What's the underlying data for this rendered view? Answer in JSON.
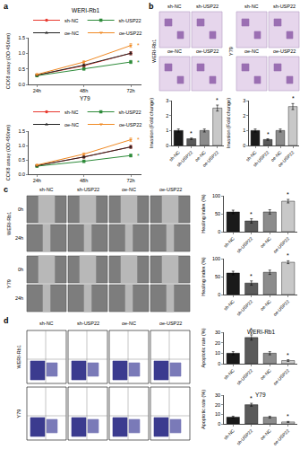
{
  "chart_data": [
    {
      "type": "line",
      "title": "WERI-Rb1",
      "ylabel": "CCK8 assay (OD 450nm)",
      "categories": [
        "24h",
        "48h",
        "72h"
      ],
      "ylim": [
        0,
        1.5
      ],
      "yticks": [
        {
          "value": 0,
          "label": "0.0"
        },
        {
          "value": 0.5,
          "label": "0.5"
        },
        {
          "value": 1,
          "label": "1.0"
        },
        {
          "value": 1.5,
          "label": "1.5"
        }
      ],
      "grid": false,
      "series": [
        {
          "name": "sh-NC",
          "color": "#e8392f",
          "marker": "circle",
          "line_style": "solid",
          "values": [
            0.3,
            0.6,
            1.0
          ],
          "errors": [
            0.03,
            0.04,
            0.05
          ]
        },
        {
          "name": "sh-USP22",
          "color": "#2e8b3a",
          "marker": "square",
          "line_style": "solid",
          "values": [
            0.28,
            0.5,
            0.72
          ],
          "errors": [
            0.03,
            0.04,
            0.05
          ],
          "marks": [
            null,
            null,
            "*"
          ]
        },
        {
          "name": "oe-NC",
          "color": "#222222",
          "marker": "triangle-up",
          "line_style": "solid",
          "values": [
            0.3,
            0.62,
            1.0
          ],
          "errors": [
            0.03,
            0.04,
            0.05
          ]
        },
        {
          "name": "oe-USP22",
          "color": "#f08a24",
          "marker": "triangle-down",
          "line_style": "solid",
          "values": [
            0.32,
            0.72,
            1.25
          ],
          "errors": [
            0.03,
            0.04,
            0.06
          ],
          "marks": [
            null,
            null,
            "*"
          ]
        }
      ]
    },
    {
      "type": "line",
      "title": "Y79",
      "ylabel": "CCK8 assay (OD 450nm)",
      "categories": [
        "24h",
        "48h",
        "72h"
      ],
      "ylim": [
        0,
        1.5
      ],
      "yticks": [
        {
          "value": 0,
          "label": "0.0"
        },
        {
          "value": 0.5,
          "label": "0.5"
        },
        {
          "value": 1,
          "label": "1.0"
        },
        {
          "value": 1.5,
          "label": "1.5"
        }
      ],
      "grid": false,
      "series": [
        {
          "name": "sh-NC",
          "color": "#e8392f",
          "marker": "circle",
          "line_style": "solid",
          "values": [
            0.3,
            0.6,
            0.95
          ],
          "errors": [
            0.03,
            0.04,
            0.05
          ]
        },
        {
          "name": "sh-USP22",
          "color": "#2e8b3a",
          "marker": "square",
          "line_style": "solid",
          "values": [
            0.28,
            0.45,
            0.65
          ],
          "errors": [
            0.03,
            0.04,
            0.05
          ],
          "marks": [
            null,
            null,
            "*"
          ]
        },
        {
          "name": "oe-NC",
          "color": "#222222",
          "marker": "triangle-up",
          "line_style": "solid",
          "values": [
            0.3,
            0.6,
            0.95
          ],
          "errors": [
            0.03,
            0.04,
            0.05
          ]
        },
        {
          "name": "oe-USP22",
          "color": "#f08a24",
          "marker": "triangle-down",
          "line_style": "solid",
          "values": [
            0.32,
            0.7,
            1.2
          ],
          "errors": [
            0.03,
            0.04,
            0.06
          ],
          "marks": [
            null,
            null,
            "*"
          ]
        }
      ]
    },
    {
      "type": "bar",
      "ylabel": "Invasion (Fold change)",
      "categories": [
        "sh-NC",
        "sh-USP22",
        "oe-NC",
        "oe-USP22"
      ],
      "values": [
        1.0,
        0.45,
        1.0,
        2.5
      ],
      "errors": [
        0.1,
        0.05,
        0.1,
        0.2
      ],
      "colors": [
        "#1a1a1a",
        "#5a5a5a",
        "#8c8c8c",
        "#c8c8c8"
      ],
      "marks": [
        null,
        "*",
        null,
        "*"
      ],
      "ylim": [
        0,
        3
      ],
      "yticks": [
        0,
        1,
        2,
        3
      ],
      "grid": false
    },
    {
      "type": "bar",
      "ylabel": "Invasion (Fold change)",
      "categories": [
        "sh-NC",
        "sh-USP22",
        "oe-NC",
        "oe-USP22"
      ],
      "values": [
        1.0,
        0.4,
        1.0,
        2.6
      ],
      "errors": [
        0.1,
        0.05,
        0.1,
        0.2
      ],
      "colors": [
        "#1a1a1a",
        "#5a5a5a",
        "#8c8c8c",
        "#c8c8c8"
      ],
      "marks": [
        null,
        "*",
        null,
        "*"
      ],
      "ylim": [
        0,
        3
      ],
      "yticks": [
        0,
        1,
        2,
        3
      ],
      "grid": false
    },
    {
      "type": "bar",
      "ylabel": "Healing index (%)",
      "categories": [
        "sh-NC",
        "sh-USP22",
        "oe-NC",
        "oe-USP22"
      ],
      "values": [
        55,
        30,
        55,
        85
      ],
      "errors": [
        5,
        6,
        6,
        5
      ],
      "colors": [
        "#1a1a1a",
        "#5a5a5a",
        "#8c8c8c",
        "#c8c8c8"
      ],
      "marks": [
        null,
        "*",
        null,
        "*"
      ],
      "ylim": [
        0,
        100
      ],
      "yticks": [
        0,
        50,
        100
      ],
      "grid": false
    },
    {
      "type": "bar",
      "ylabel": "Healing index (%)",
      "categories": [
        "sh-NC",
        "sh-USP22",
        "oe-NC",
        "oe-USP22"
      ],
      "values": [
        60,
        32,
        62,
        90
      ],
      "errors": [
        5,
        6,
        6,
        4
      ],
      "colors": [
        "#1a1a1a",
        "#5a5a5a",
        "#8c8c8c",
        "#c8c8c8"
      ],
      "marks": [
        null,
        "*",
        null,
        "*"
      ],
      "ylim": [
        0,
        100
      ],
      "yticks": [
        0,
        50,
        100
      ],
      "grid": false
    },
    {
      "type": "bar",
      "title": "WERI-Rb1",
      "ylabel": "Apoptotic rate (%)",
      "categories": [
        "sh-NC",
        "sh-USP22",
        "oe-NC",
        "oe-USP22"
      ],
      "values": [
        10,
        25,
        10,
        3
      ],
      "errors": [
        1.5,
        2.5,
        1.5,
        0.8
      ],
      "colors": [
        "#1a1a1a",
        "#5a5a5a",
        "#8c8c8c",
        "#c8c8c8"
      ],
      "marks": [
        null,
        "*",
        null,
        "*"
      ],
      "ylim": [
        0,
        30
      ],
      "yticks": [
        0,
        10,
        20,
        30
      ],
      "grid": false
    },
    {
      "type": "bar",
      "title": "Y79",
      "ylabel": "Apoptotic rate (%)",
      "categories": [
        "sh-NC",
        "sh-USP22",
        "oe-NC",
        "oe-USP22"
      ],
      "values": [
        7,
        20,
        7,
        2
      ],
      "errors": [
        1,
        1.5,
        1,
        0.5
      ],
      "colors": [
        "#1a1a1a",
        "#5a5a5a",
        "#8c8c8c",
        "#c8c8c8"
      ],
      "marks": [
        null,
        "*",
        null,
        "*"
      ],
      "ylim": [
        0,
        30
      ],
      "yticks": [
        0,
        10,
        20,
        30
      ],
      "grid": false
    }
  ],
  "panels": {
    "labels": [
      "a",
      "b",
      "c",
      "d"
    ],
    "b_images": {
      "groups": [
        "WERI-Rb1",
        "Y79"
      ],
      "rows": [
        [
          "sh-NC",
          "sh-USP22"
        ],
        [
          "oe-NC",
          "oe-USP22"
        ]
      ]
    },
    "c_images": {
      "columns": [
        "sh-NC",
        "sh-USP22",
        "oe-NC",
        "oe-USP22"
      ],
      "groups": [
        "WERI-Rb1",
        "Y79"
      ],
      "times": [
        "0h",
        "24h"
      ]
    },
    "d_images": {
      "columns": [
        "sh-NC",
        "sh-USP22",
        "oe-NC",
        "oe-USP22"
      ],
      "groups": [
        "WERI-Rb1",
        "Y79"
      ]
    }
  }
}
